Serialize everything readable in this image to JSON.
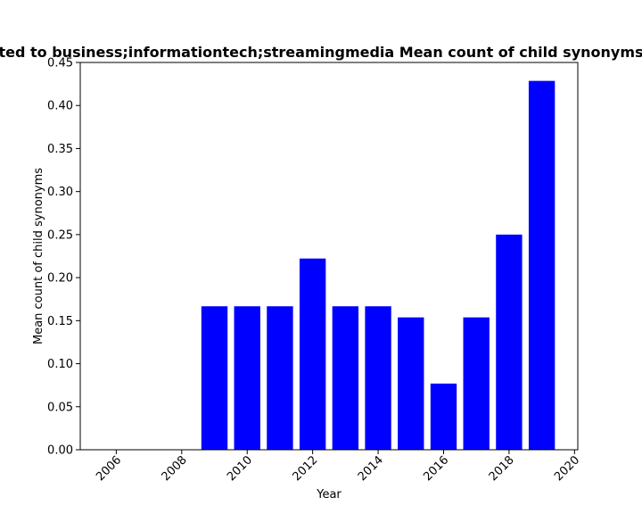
{
  "chart_data": {
    "type": "bar",
    "title": "ted to business;informationtech;streamingmedia Mean count of child synonyms",
    "xlabel": "Year",
    "ylabel": "Mean count of child synonyms",
    "x": [
      2009,
      2010,
      2011,
      2012,
      2013,
      2014,
      2015,
      2016,
      2017,
      2018,
      2019
    ],
    "values": [
      0.1667,
      0.1667,
      0.1667,
      0.2222,
      0.1667,
      0.1667,
      0.1538,
      0.0769,
      0.1538,
      0.25,
      0.4286
    ],
    "xlim": [
      2004.9,
      2020.1
    ],
    "ylim": [
      0,
      0.45
    ],
    "xticks": [
      2006,
      2008,
      2010,
      2012,
      2014,
      2016,
      2018,
      2020
    ],
    "yticks": [
      "0.00",
      "0.05",
      "0.10",
      "0.15",
      "0.20",
      "0.25",
      "0.30",
      "0.35",
      "0.40",
      "0.45"
    ],
    "bar_color": "#0000ff",
    "grid": false
  }
}
